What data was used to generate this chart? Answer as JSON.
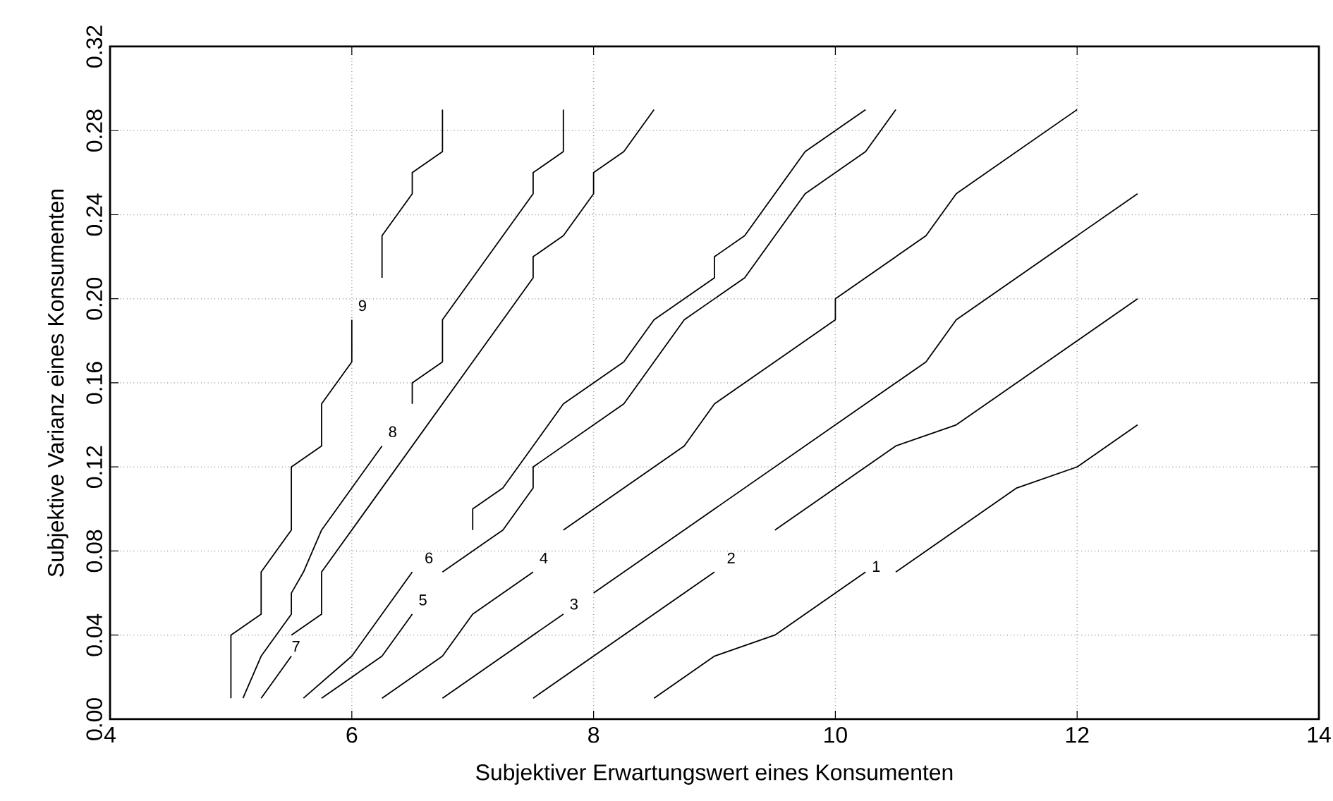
{
  "chart_data": {
    "type": "line",
    "xlabel": "Subjektiver Erwartungswert eines Konsumenten",
    "ylabel": "Subjektive Varianz eines Konsumenten",
    "xlim": [
      4,
      14
    ],
    "ylim": [
      0,
      0.32
    ],
    "xticks": [
      4,
      6,
      8,
      10,
      12,
      14
    ],
    "yticks": [
      {
        "value": 0,
        "label": "0.00"
      },
      {
        "value": 0.04,
        "label": "0.04"
      },
      {
        "value": 0.08,
        "label": "0.08"
      },
      {
        "value": 0.12,
        "label": "0.12"
      },
      {
        "value": 0.16,
        "label": "0.16"
      },
      {
        "value": 0.2,
        "label": "0.20"
      },
      {
        "value": 0.24,
        "label": "0.24"
      },
      {
        "value": 0.28,
        "label": "0.28"
      },
      {
        "value": 0.32,
        "label": "0.32"
      }
    ],
    "grid": true,
    "marker": "none",
    "line_style": "solid",
    "series": [
      {
        "name": "1",
        "color": "#000000",
        "x": [
          8.5,
          9.0,
          9.5,
          10.25,
          null,
          10.5,
          11.5,
          12.0,
          12.5
        ],
        "values": [
          0.01,
          0.03,
          0.04,
          0.07,
          null,
          0.07,
          0.11,
          0.12,
          0.14
        ]
      },
      {
        "name": "2",
        "color": "#000000",
        "x": [
          7.5,
          9.0,
          null,
          9.5,
          10.5,
          11.0,
          12.5
        ],
        "values": [
          0.01,
          0.07,
          null,
          0.09,
          0.13,
          0.14,
          0.2
        ]
      },
      {
        "name": "3",
        "color": "#000000",
        "x": [
          6.75,
          7.75,
          null,
          8.0,
          10.75,
          11.0,
          12.5
        ],
        "values": [
          0.01,
          0.05,
          null,
          0.06,
          0.17,
          0.19,
          0.25
        ]
      },
      {
        "name": "4",
        "color": "#000000",
        "x": [
          6.25,
          6.75,
          7.0,
          7.5,
          null,
          7.75,
          8.75,
          9.0,
          10.0,
          10.0,
          10.75,
          11.0,
          12.0
        ],
        "values": [
          0.01,
          0.03,
          0.05,
          0.07,
          null,
          0.09,
          0.13,
          0.15,
          0.19,
          0.2,
          0.23,
          0.25,
          0.29
        ]
      },
      {
        "name": "5",
        "color": "#000000",
        "x": [
          5.75,
          6.25,
          6.5,
          null,
          6.75,
          7.0,
          7.25,
          7.5,
          7.5,
          8.25,
          8.75,
          9.25,
          9.75,
          10.25,
          10.5
        ],
        "values": [
          0.01,
          0.03,
          0.05,
          null,
          0.07,
          0.08,
          0.09,
          0.11,
          0.12,
          0.15,
          0.19,
          0.21,
          0.25,
          0.27,
          0.29
        ]
      },
      {
        "name": "6",
        "color": "#000000",
        "x": [
          5.6,
          6.0,
          6.5,
          null,
          7.0,
          7.0,
          7.25,
          7.75,
          8.25,
          8.5,
          9.0,
          9.0,
          9.25,
          9.75,
          10.25
        ],
        "values": [
          0.01,
          0.03,
          0.07,
          null,
          0.09,
          0.1,
          0.11,
          0.15,
          0.17,
          0.19,
          0.21,
          0.22,
          0.23,
          0.27,
          0.29
        ]
      },
      {
        "name": "7",
        "color": "#000000",
        "x": [
          5.25,
          5.5,
          null,
          5.5,
          5.75,
          5.75,
          7.5,
          7.5,
          7.75,
          8.0,
          8.0,
          8.25,
          8.5
        ],
        "values": [
          0.01,
          0.03,
          null,
          0.04,
          0.05,
          0.07,
          0.21,
          0.22,
          0.23,
          0.25,
          0.26,
          0.27,
          0.29
        ]
      },
      {
        "name": "8",
        "color": "#000000",
        "x": [
          5.1,
          5.25,
          5.5,
          5.5,
          5.6,
          5.75,
          6.0,
          6.25,
          null,
          6.5,
          6.5,
          6.75,
          6.75,
          7.5,
          7.5,
          7.75,
          7.75
        ],
        "values": [
          0.01,
          0.03,
          0.05,
          0.06,
          0.07,
          0.09,
          0.11,
          0.13,
          null,
          0.15,
          0.16,
          0.17,
          0.19,
          0.25,
          0.26,
          0.27,
          0.29
        ]
      },
      {
        "name": "9",
        "color": "#000000",
        "x": [
          5.0,
          5.0,
          5.25,
          5.25,
          5.5,
          5.5,
          5.75,
          5.75,
          6.0,
          6.0,
          null,
          6.25,
          6.25,
          6.5,
          6.5,
          6.75,
          6.75
        ],
        "values": [
          0.01,
          0.04,
          0.05,
          0.07,
          0.09,
          0.12,
          0.13,
          0.15,
          0.17,
          0.19,
          null,
          0.21,
          0.23,
          0.25,
          0.26,
          0.27,
          0.29
        ]
      }
    ]
  }
}
